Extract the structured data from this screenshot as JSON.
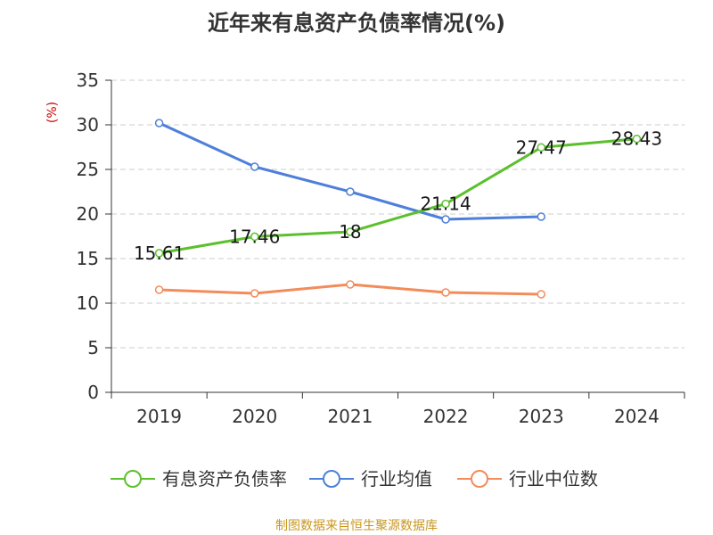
{
  "chart_data": {
    "type": "line",
    "title": "近年来有息资产负债率情况(%)",
    "ylabel": "(%)",
    "xlabel": "",
    "categories": [
      "2019",
      "2020",
      "2021",
      "2022",
      "2023",
      "2024"
    ],
    "ylim": [
      0,
      35
    ],
    "yticks": [
      0,
      5,
      10,
      15,
      20,
      25,
      30,
      35
    ],
    "grid": true,
    "legend_position": "bottom",
    "series": [
      {
        "name": "有息资产负债率",
        "color": "#5cc02e",
        "values": [
          15.61,
          17.46,
          18,
          21.14,
          27.47,
          28.43
        ],
        "labels": [
          "15.61",
          "17.46",
          "18",
          "21.14",
          "27.47",
          "28.43"
        ]
      },
      {
        "name": "行业均值",
        "color": "#4e7fd9",
        "values": [
          30.2,
          25.3,
          22.5,
          19.4,
          19.7,
          null
        ]
      },
      {
        "name": "行业中位数",
        "color": "#f28c5a",
        "values": [
          11.5,
          11.1,
          12.1,
          11.2,
          11.0,
          null
        ]
      }
    ]
  },
  "source": "制图数据来自恒生聚源数据库",
  "colors": {
    "axis": "#333333",
    "grid": "#cccccc",
    "ylabel": "#cc0000",
    "source": "#c8961e"
  }
}
